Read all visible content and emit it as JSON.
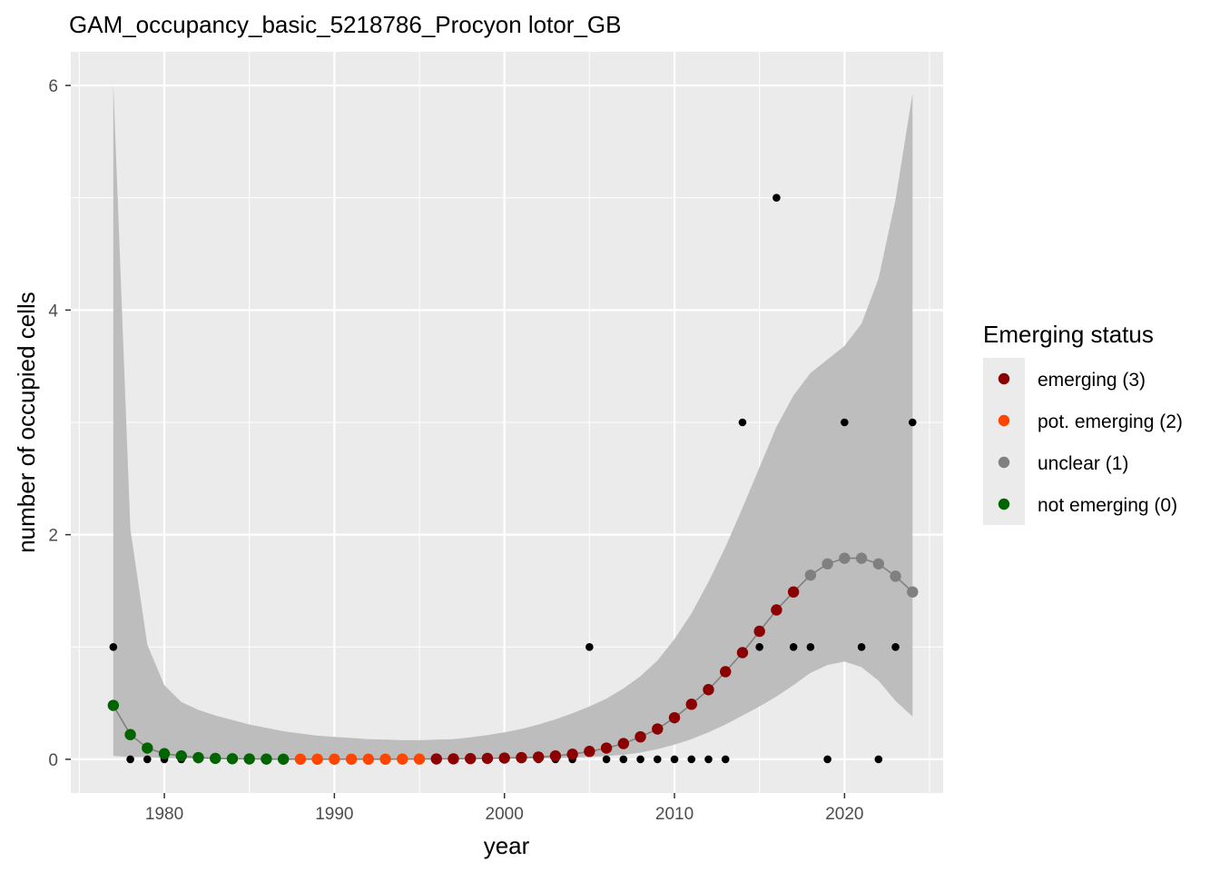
{
  "chart_data": {
    "type": "scatter",
    "title": "GAM_occupancy_basic_5218786_Procyon lotor_GB",
    "xlabel": "year",
    "ylabel": "number of occupied cells",
    "xlim": [
      1974.5,
      2025.8
    ],
    "ylim": [
      -0.3,
      6.3
    ],
    "x_ticks": [
      1980,
      1990,
      2000,
      2010,
      2020
    ],
    "y_ticks": [
      0,
      2,
      4,
      6
    ],
    "grid": true,
    "legend": {
      "title": "Emerging status",
      "placement": "right",
      "entries": [
        {
          "label": "emerging (3)",
          "color": "#8b0000"
        },
        {
          "label": "pot. emerging (2)",
          "color": "#ff4500"
        },
        {
          "label": "unclear (1)",
          "color": "#808080"
        },
        {
          "label": "not emerging (0)",
          "color": "#006400"
        }
      ]
    },
    "colors": {
      "emerging": "#8b0000",
      "pot_emerging": "#ff4500",
      "unclear": "#808080",
      "not_emerging": "#006400",
      "observed": "#000000",
      "ribbon": "#bdbdbd",
      "fit_line": "#808080",
      "panel": "#ebebeb"
    },
    "observed": {
      "x": [
        1977,
        1978,
        1979,
        1980,
        1981,
        1982,
        1983,
        1984,
        1985,
        1986,
        1987,
        1988,
        1989,
        1990,
        1991,
        1992,
        1993,
        1994,
        1995,
        1996,
        1997,
        1998,
        1999,
        2000,
        2001,
        2002,
        2003,
        2004,
        2005,
        2006,
        2007,
        2008,
        2009,
        2010,
        2011,
        2012,
        2013,
        2014,
        2015,
        2016,
        2017,
        2018,
        2019,
        2020,
        2021,
        2022,
        2023,
        2024
      ],
      "y": [
        1,
        0,
        0,
        0,
        0,
        0,
        0,
        0,
        0,
        0,
        0,
        0,
        0,
        0,
        0,
        0,
        0,
        0,
        0,
        0,
        0,
        0,
        0,
        0,
        0,
        0,
        0,
        0,
        1,
        0,
        0,
        0,
        0,
        0,
        0,
        0,
        0,
        3,
        1,
        5,
        1,
        1,
        0,
        3,
        1,
        0,
        1,
        3
      ]
    },
    "fitted": {
      "x": [
        1977,
        1978,
        1979,
        1980,
        1981,
        1982,
        1983,
        1984,
        1985,
        1986,
        1987,
        1988,
        1989,
        1990,
        1991,
        1992,
        1993,
        1994,
        1995,
        1996,
        1997,
        1998,
        1999,
        2000,
        2001,
        2002,
        2003,
        2004,
        2005,
        2006,
        2007,
        2008,
        2009,
        2010,
        2011,
        2012,
        2013,
        2014,
        2015,
        2016,
        2017,
        2018,
        2019,
        2020,
        2021,
        2022,
        2023,
        2024
      ],
      "y": [
        0.48,
        0.22,
        0.1,
        0.05,
        0.03,
        0.015,
        0.008,
        0.005,
        0.003,
        0.002,
        0.001,
        0.001,
        0.001,
        0.001,
        0.001,
        0.001,
        0.001,
        0.002,
        0.002,
        0.003,
        0.004,
        0.006,
        0.008,
        0.011,
        0.015,
        0.02,
        0.03,
        0.045,
        0.07,
        0.1,
        0.14,
        0.2,
        0.27,
        0.37,
        0.49,
        0.62,
        0.78,
        0.95,
        1.14,
        1.33,
        1.49,
        1.64,
        1.74,
        1.79,
        1.79,
        1.74,
        1.63,
        1.49
      ],
      "status": [
        "not_emerging",
        "not_emerging",
        "not_emerging",
        "not_emerging",
        "not_emerging",
        "not_emerging",
        "not_emerging",
        "not_emerging",
        "not_emerging",
        "not_emerging",
        "not_emerging",
        "pot_emerging",
        "pot_emerging",
        "pot_emerging",
        "pot_emerging",
        "pot_emerging",
        "pot_emerging",
        "pot_emerging",
        "pot_emerging",
        "emerging",
        "emerging",
        "emerging",
        "emerging",
        "emerging",
        "emerging",
        "emerging",
        "emerging",
        "emerging",
        "emerging",
        "emerging",
        "emerging",
        "emerging",
        "emerging",
        "emerging",
        "emerging",
        "emerging",
        "emerging",
        "emerging",
        "emerging",
        "emerging",
        "emerging",
        "unclear",
        "unclear",
        "unclear",
        "unclear",
        "unclear",
        "unclear",
        "unclear"
      ],
      "lower": [
        0.03,
        0.02,
        0.02,
        0.01,
        0.01,
        0.005,
        0.003,
        0.002,
        0.001,
        0.001,
        0.001,
        0.001,
        0.001,
        0.001,
        0.001,
        0.001,
        0.001,
        0.001,
        0.001,
        0.001,
        0.001,
        0.002,
        0.003,
        0.004,
        0.005,
        0.007,
        0.01,
        0.015,
        0.02,
        0.03,
        0.04,
        0.06,
        0.09,
        0.13,
        0.18,
        0.24,
        0.31,
        0.39,
        0.47,
        0.56,
        0.66,
        0.77,
        0.84,
        0.87,
        0.82,
        0.7,
        0.52,
        0.38
      ],
      "upper": [
        6.02,
        2.05,
        1.02,
        0.66,
        0.51,
        0.44,
        0.39,
        0.35,
        0.31,
        0.28,
        0.25,
        0.23,
        0.21,
        0.2,
        0.19,
        0.18,
        0.175,
        0.17,
        0.17,
        0.175,
        0.18,
        0.195,
        0.215,
        0.24,
        0.27,
        0.31,
        0.355,
        0.41,
        0.47,
        0.54,
        0.63,
        0.74,
        0.88,
        1.07,
        1.3,
        1.58,
        1.89,
        2.24,
        2.6,
        2.96,
        3.24,
        3.44,
        3.56,
        3.68,
        3.88,
        4.28,
        4.98,
        5.93
      ]
    }
  }
}
